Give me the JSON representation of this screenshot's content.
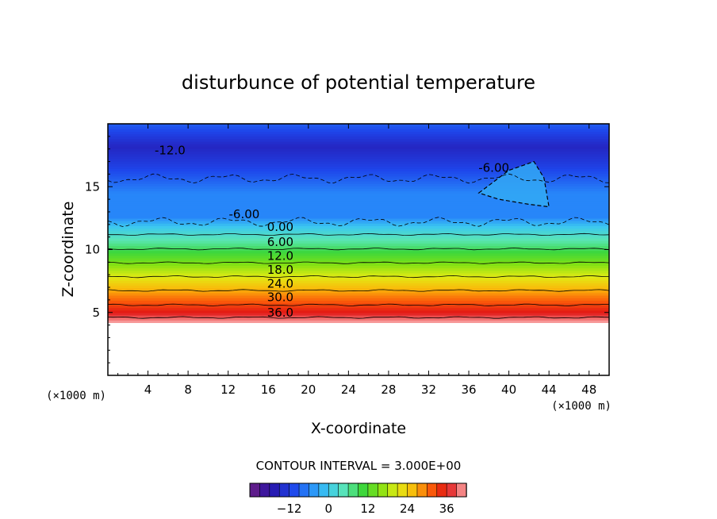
{
  "chart_data": {
    "type": "heatmap",
    "title": "disturbunce of potential temperature",
    "xlabel": "X-coordinate",
    "ylabel": "Z-coordinate",
    "xunit": "(×1000 m)",
    "yunit": "(×1000 m)",
    "xlim": [
      0,
      50
    ],
    "ylim": [
      0,
      20
    ],
    "x_ticks": [
      "4",
      "8",
      "12",
      "16",
      "20",
      "24",
      "28",
      "32",
      "36",
      "40",
      "44",
      "48"
    ],
    "y_ticks": [
      "5",
      "10",
      "15"
    ],
    "contour_interval_label": "CONTOUR INTERVAL = 3.000E+00",
    "colorbar": {
      "min": -24,
      "max": 42,
      "step": 3,
      "ticks": [
        "-12",
        "0",
        "12",
        "24",
        "36"
      ]
    },
    "contour_labels": [
      {
        "text": "-12.0",
        "x": 6.2,
        "z": 17.9
      },
      {
        "text": "-6.00",
        "x": 38.5,
        "z": 16.5
      },
      {
        "text": "-6.00",
        "x": 13.6,
        "z": 12.8
      },
      {
        "text": "0.00",
        "x": 17.2,
        "z": 11.8
      },
      {
        "text": "6.00",
        "x": 17.2,
        "z": 10.6
      },
      {
        "text": "12.0",
        "x": 17.2,
        "z": 9.5
      },
      {
        "text": "18.0",
        "x": 17.2,
        "z": 8.4
      },
      {
        "text": "24.0",
        "x": 17.2,
        "z": 7.3
      },
      {
        "text": "30.0",
        "x": 17.2,
        "z": 6.2
      },
      {
        "text": "36.0",
        "x": 17.2,
        "z": 5.0
      }
    ],
    "profile": [
      {
        "z": 4.2,
        "value": 42
      },
      {
        "z": 5.0,
        "value": 36
      },
      {
        "z": 6.2,
        "value": 30
      },
      {
        "z": 7.3,
        "value": 24
      },
      {
        "z": 8.4,
        "value": 18
      },
      {
        "z": 9.5,
        "value": 12
      },
      {
        "z": 10.6,
        "value": 6
      },
      {
        "z": 11.8,
        "value": 0
      },
      {
        "z": 12.6,
        "value": -6
      },
      {
        "z": 14.5,
        "value": -6
      },
      {
        "z": 16.8,
        "value": -12
      },
      {
        "z": 18.2,
        "value": -15
      },
      {
        "z": 20.0,
        "value": -9
      }
    ]
  }
}
